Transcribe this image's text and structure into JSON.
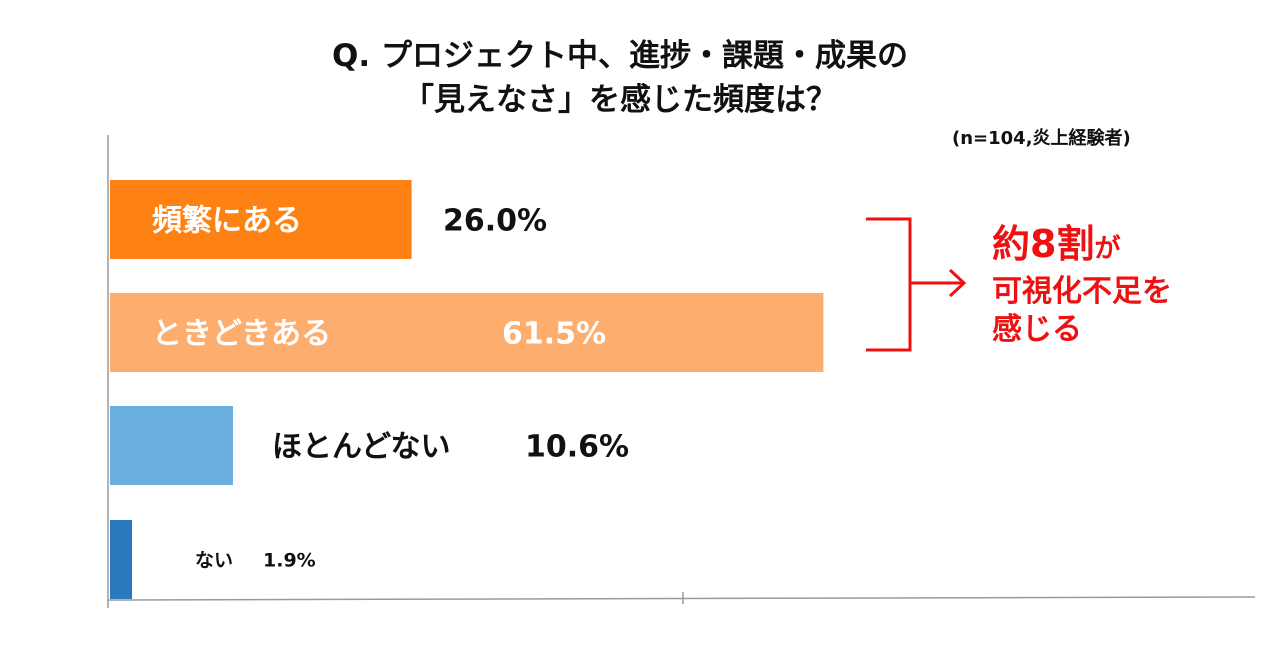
{
  "title": {
    "line1": "Q. プロジェクト中、進捗・課題・成果の",
    "line2": "「見えなさ」を感じた頻度は？"
  },
  "sample_note": "(n=104,炎上経験者)",
  "chart_data": {
    "type": "bar",
    "orientation": "horizontal",
    "categories": [
      "頻繁にある",
      "ときどきある",
      "ほとんどない",
      "ない"
    ],
    "values": [
      26.0,
      61.5,
      10.6,
      1.9
    ],
    "value_labels": [
      "26.0%",
      "61.5%",
      "10.6%",
      "1.9%"
    ],
    "colors": [
      "#fd8213",
      "#fdad6e",
      "#6aaedd",
      "#2a78bd"
    ],
    "xlim": [
      0,
      100
    ],
    "grid": false,
    "legend": "none"
  },
  "annotation": {
    "headline": "約8割",
    "particle": "が",
    "line2": "可視化不足を",
    "line3": "感じる",
    "color": "#ee1111"
  }
}
